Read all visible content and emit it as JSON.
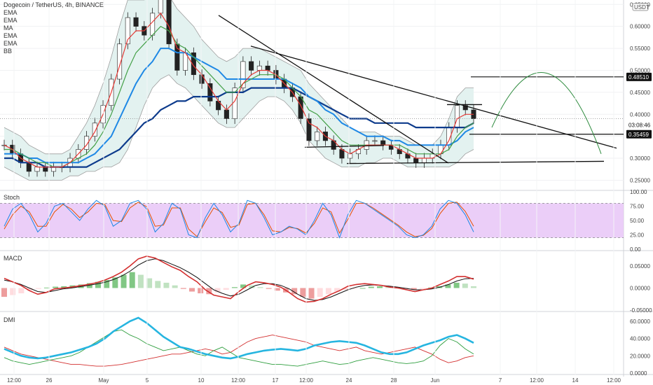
{
  "header": {
    "symbol_line": "Dogecoin / TetherUS, 4h, BINANCE",
    "indicators": [
      "EMA",
      "EMA",
      "MA",
      "EMA",
      "EMA",
      "BB"
    ],
    "currency_badge": "USDT"
  },
  "panels": {
    "stoch": "Stoch",
    "macd": "MACD",
    "dmi": "DMI"
  },
  "price_tags": {
    "target": "0.48510",
    "countdown": "03:08:46",
    "support": "0.35459"
  },
  "chart_data": [
    {
      "type": "line",
      "title": "Dogecoin / TetherUS, 4h, BINANCE",
      "x_ticks": [
        "12:00",
        "26",
        "May",
        "5",
        "10",
        "12:00",
        "17",
        "12:00",
        "24",
        "28",
        "Jun",
        "7",
        "12:00",
        "14",
        "12:00"
      ],
      "y_ticks": [
        "0.65000",
        "0.60000",
        "0.55000",
        "0.50000",
        "0.45000",
        "0.40000",
        "0.35000",
        "0.30000",
        "0.25000"
      ],
      "ylim": [
        0.23,
        0.66
      ],
      "colors": {
        "up": "#26a69a",
        "down": "#ef5350",
        "ema_fast": "#e53935",
        "ema_mid": "#43a047",
        "ema_slow": "#1e88e5",
        "ma": "#0d3b8c",
        "bb": "#9e9e9e",
        "bb_fill": "#e3f2f0"
      },
      "close": [
        0.33,
        0.31,
        0.29,
        0.27,
        0.28,
        0.27,
        0.28,
        0.28,
        0.3,
        0.32,
        0.35,
        0.38,
        0.42,
        0.48,
        0.56,
        0.62,
        0.6,
        0.58,
        0.63,
        0.67,
        0.56,
        0.5,
        0.54,
        0.49,
        0.47,
        0.43,
        0.41,
        0.39,
        0.46,
        0.52,
        0.5,
        0.51,
        0.5,
        0.48,
        0.46,
        0.44,
        0.39,
        0.34,
        0.36,
        0.34,
        0.32,
        0.3,
        0.31,
        0.32,
        0.34,
        0.34,
        0.33,
        0.32,
        0.31,
        0.3,
        0.29,
        0.3,
        0.31,
        0.33,
        0.37,
        0.42,
        0.41,
        0.39
      ],
      "ema_fast": [
        0.33,
        0.32,
        0.3,
        0.29,
        0.28,
        0.28,
        0.28,
        0.28,
        0.29,
        0.31,
        0.33,
        0.36,
        0.4,
        0.45,
        0.51,
        0.57,
        0.59,
        0.59,
        0.61,
        0.63,
        0.6,
        0.55,
        0.54,
        0.51,
        0.49,
        0.46,
        0.43,
        0.41,
        0.43,
        0.47,
        0.49,
        0.5,
        0.5,
        0.49,
        0.47,
        0.45,
        0.42,
        0.38,
        0.37,
        0.35,
        0.34,
        0.32,
        0.31,
        0.32,
        0.33,
        0.33,
        0.33,
        0.33,
        0.32,
        0.31,
        0.3,
        0.3,
        0.3,
        0.31,
        0.34,
        0.39,
        0.4,
        0.4
      ],
      "ema_mid": [
        0.32,
        0.32,
        0.31,
        0.3,
        0.29,
        0.29,
        0.28,
        0.28,
        0.29,
        0.3,
        0.31,
        0.33,
        0.36,
        0.4,
        0.45,
        0.5,
        0.54,
        0.56,
        0.58,
        0.6,
        0.59,
        0.56,
        0.55,
        0.53,
        0.51,
        0.49,
        0.47,
        0.45,
        0.45,
        0.47,
        0.48,
        0.49,
        0.49,
        0.49,
        0.48,
        0.46,
        0.44,
        0.41,
        0.4,
        0.38,
        0.36,
        0.34,
        0.33,
        0.33,
        0.33,
        0.33,
        0.33,
        0.33,
        0.33,
        0.32,
        0.31,
        0.31,
        0.31,
        0.31,
        0.32,
        0.35,
        0.37,
        0.38
      ],
      "ema_slow": [
        0.31,
        0.31,
        0.31,
        0.3,
        0.3,
        0.29,
        0.29,
        0.29,
        0.29,
        0.29,
        0.3,
        0.31,
        0.33,
        0.35,
        0.39,
        0.43,
        0.47,
        0.5,
        0.52,
        0.55,
        0.55,
        0.54,
        0.54,
        0.53,
        0.52,
        0.51,
        0.5,
        0.48,
        0.48,
        0.48,
        0.48,
        0.48,
        0.48,
        0.48,
        0.48,
        0.47,
        0.46,
        0.44,
        0.43,
        0.41,
        0.4,
        0.38,
        0.37,
        0.36,
        0.35,
        0.35,
        0.35,
        0.34,
        0.34,
        0.33,
        0.33,
        0.33,
        0.33,
        0.33,
        0.33,
        0.34,
        0.36,
        0.37
      ],
      "ma": [
        0.3,
        0.3,
        0.29,
        0.29,
        0.29,
        0.28,
        0.28,
        0.28,
        0.28,
        0.28,
        0.28,
        0.29,
        0.3,
        0.31,
        0.32,
        0.34,
        0.36,
        0.38,
        0.39,
        0.41,
        0.42,
        0.43,
        0.43,
        0.44,
        0.44,
        0.44,
        0.44,
        0.45,
        0.45,
        0.45,
        0.46,
        0.46,
        0.46,
        0.46,
        0.46,
        0.46,
        0.45,
        0.44,
        0.43,
        0.42,
        0.41,
        0.4,
        0.39,
        0.39,
        0.39,
        0.38,
        0.38,
        0.38,
        0.38,
        0.38,
        0.37,
        0.37,
        0.37,
        0.37,
        0.37,
        0.37,
        0.37,
        0.38
      ],
      "bb_upper": [
        0.37,
        0.36,
        0.35,
        0.33,
        0.32,
        0.31,
        0.31,
        0.31,
        0.32,
        0.35,
        0.38,
        0.42,
        0.47,
        0.53,
        0.6,
        0.66,
        0.66,
        0.66,
        0.67,
        0.68,
        0.67,
        0.64,
        0.62,
        0.6,
        0.57,
        0.55,
        0.53,
        0.52,
        0.53,
        0.55,
        0.55,
        0.55,
        0.54,
        0.53,
        0.52,
        0.51,
        0.5,
        0.47,
        0.45,
        0.43,
        0.41,
        0.39,
        0.37,
        0.36,
        0.36,
        0.36,
        0.35,
        0.35,
        0.35,
        0.34,
        0.33,
        0.33,
        0.33,
        0.35,
        0.39,
        0.44,
        0.46,
        0.46
      ],
      "bb_lower": [
        0.28,
        0.27,
        0.26,
        0.25,
        0.25,
        0.25,
        0.25,
        0.25,
        0.26,
        0.26,
        0.27,
        0.27,
        0.28,
        0.28,
        0.29,
        0.32,
        0.37,
        0.42,
        0.46,
        0.48,
        0.49,
        0.47,
        0.46,
        0.44,
        0.42,
        0.4,
        0.38,
        0.37,
        0.37,
        0.39,
        0.41,
        0.43,
        0.44,
        0.44,
        0.43,
        0.41,
        0.38,
        0.34,
        0.32,
        0.3,
        0.29,
        0.28,
        0.28,
        0.28,
        0.29,
        0.29,
        0.3,
        0.3,
        0.29,
        0.28,
        0.28,
        0.28,
        0.28,
        0.28,
        0.28,
        0.29,
        0.31,
        0.32
      ],
      "horizontal_levels": [
        0.4851,
        0.35459
      ],
      "current_price": 0.39
    },
    {
      "type": "line",
      "title": "Stoch",
      "y_ticks": [
        "100.00",
        "75.00",
        "50.00",
        "25.00",
        "0.00"
      ],
      "ylim": [
        0,
        100
      ],
      "band": [
        20,
        80
      ],
      "series": [
        {
          "values": [
            40,
            70,
            80,
            60,
            30,
            45,
            75,
            80,
            65,
            50,
            70,
            85,
            75,
            40,
            50,
            80,
            85,
            70,
            30,
            45,
            80,
            70,
            25,
            20,
            55,
            80,
            60,
            30,
            45,
            85,
            80,
            55,
            25,
            30,
            40,
            35,
            25,
            50,
            80,
            60,
            20,
            60,
            85,
            80,
            70,
            60,
            50,
            40,
            25,
            20,
            25,
            40,
            70,
            85,
            80,
            60,
            30
          ]
        },
        {
          "values": [
            35,
            60,
            75,
            65,
            40,
            40,
            65,
            78,
            70,
            55,
            65,
            80,
            78,
            50,
            48,
            72,
            82,
            74,
            40,
            42,
            72,
            72,
            35,
            22,
            48,
            72,
            64,
            38,
            42,
            78,
            80,
            60,
            32,
            30,
            38,
            36,
            28,
            45,
            72,
            65,
            28,
            52,
            80,
            80,
            72,
            62,
            52,
            42,
            30,
            22,
            24,
            36,
            62,
            80,
            82,
            66,
            40
          ]
        }
      ]
    },
    {
      "type": "bar",
      "title": "MACD",
      "y_ticks": [
        "0.05000",
        "0.00000",
        "-0.05000"
      ],
      "ylim": [
        -0.05,
        0.08
      ],
      "histogram": [
        -0.02,
        -0.016,
        -0.012,
        -0.006,
        -0.002,
        0.001,
        0.003,
        0.004,
        0.006,
        0.008,
        0.011,
        0.014,
        0.018,
        0.024,
        0.03,
        0.036,
        0.03,
        0.022,
        0.016,
        0.012,
        0.006,
        -0.002,
        -0.008,
        -0.012,
        -0.014,
        -0.01,
        -0.004,
        0.002,
        0.008,
        0.006,
        0.002,
        -0.002,
        -0.006,
        -0.01,
        -0.014,
        -0.02,
        -0.024,
        -0.02,
        -0.014,
        -0.008,
        -0.004,
        -0.002,
        0.0,
        0.003,
        0.004,
        0.003,
        0.001,
        -0.002,
        -0.004,
        -0.002,
        0.001,
        0.004,
        0.008,
        0.012,
        0.01,
        0.004
      ],
      "macd_line": [
        0.022,
        0.014,
        0.006,
        -0.006,
        -0.014,
        -0.01,
        -0.002,
        0.0,
        0.002,
        0.005,
        0.008,
        0.012,
        0.018,
        0.026,
        0.036,
        0.05,
        0.066,
        0.072,
        0.068,
        0.058,
        0.048,
        0.04,
        0.026,
        0.014,
        -0.004,
        -0.016,
        -0.02,
        -0.024,
        -0.008,
        0.006,
        0.014,
        0.012,
        0.008,
        0.002,
        -0.01,
        -0.024,
        -0.032,
        -0.03,
        -0.024,
        -0.014,
        -0.006,
        0.004,
        0.008,
        0.01,
        0.008,
        0.006,
        0.002,
        0.0,
        -0.004,
        -0.008,
        -0.004,
        0.0,
        0.008,
        0.016,
        0.026,
        0.026,
        0.02
      ],
      "signal_line": [
        0.018,
        0.014,
        0.008,
        0.0,
        -0.008,
        -0.01,
        -0.006,
        -0.002,
        0.0,
        0.003,
        0.006,
        0.009,
        0.013,
        0.019,
        0.027,
        0.038,
        0.052,
        0.062,
        0.066,
        0.062,
        0.054,
        0.046,
        0.036,
        0.024,
        0.01,
        -0.004,
        -0.012,
        -0.018,
        -0.014,
        -0.004,
        0.006,
        0.01,
        0.01,
        0.006,
        -0.002,
        -0.014,
        -0.024,
        -0.028,
        -0.026,
        -0.02,
        -0.012,
        -0.004,
        0.002,
        0.006,
        0.007,
        0.006,
        0.004,
        0.002,
        -0.001,
        -0.004,
        -0.004,
        -0.002,
        0.002,
        0.008,
        0.016,
        0.021,
        0.022
      ]
    },
    {
      "type": "line",
      "title": "DMI",
      "y_ticks": [
        "60.0000",
        "40.0000",
        "20.0000",
        "0.0000"
      ],
      "ylim": [
        0,
        68
      ],
      "colors": {
        "adx": "#26b5e0",
        "plus_di": "#2e9e3e",
        "minus_di": "#d32f2f"
      },
      "series": [
        {
          "name": "ADX",
          "values": [
            28,
            24,
            20,
            18,
            17,
            18,
            20,
            22,
            24,
            27,
            30,
            34,
            40,
            48,
            54,
            60,
            64,
            58,
            50,
            42,
            36,
            30,
            28,
            25,
            22,
            20,
            18,
            17,
            19,
            22,
            24,
            26,
            27,
            28,
            27,
            26,
            28,
            32,
            34,
            36,
            37,
            36,
            35,
            32,
            28,
            24,
            22,
            22,
            24,
            28,
            32,
            35,
            38,
            42,
            44,
            40,
            35
          ]
        },
        {
          "name": "+DI",
          "values": [
            18,
            14,
            12,
            10,
            12,
            14,
            16,
            18,
            20,
            24,
            30,
            36,
            42,
            48,
            50,
            44,
            40,
            34,
            30,
            26,
            28,
            30,
            26,
            22,
            20,
            26,
            30,
            24,
            18,
            16,
            14,
            12,
            10,
            10,
            9,
            8,
            10,
            12,
            14,
            12,
            10,
            11,
            14,
            16,
            18,
            16,
            14,
            12,
            11,
            12,
            14,
            20,
            32,
            40,
            36,
            28,
            22
          ]
        },
        {
          "name": "-DI",
          "values": [
            30,
            26,
            22,
            20,
            18,
            16,
            14,
            12,
            10,
            10,
            9,
            8,
            8,
            9,
            10,
            12,
            14,
            16,
            18,
            20,
            22,
            22,
            24,
            26,
            28,
            26,
            22,
            24,
            30,
            36,
            40,
            42,
            44,
            42,
            40,
            38,
            36,
            32,
            30,
            28,
            26,
            28,
            30,
            26,
            24,
            22,
            24,
            26,
            28,
            30,
            26,
            22,
            16,
            12,
            14,
            18,
            20
          ]
        }
      ]
    }
  ]
}
